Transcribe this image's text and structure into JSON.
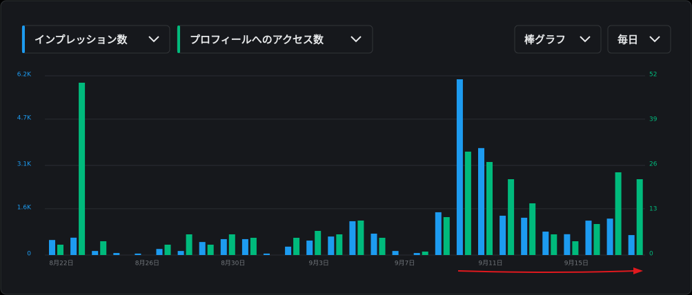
{
  "chart_data": {
    "type": "bar",
    "chart_style": "棒グラフ",
    "period": "毎日",
    "categories": [
      "8月22日",
      null,
      null,
      null,
      "8月26日",
      null,
      null,
      null,
      "8月30日",
      null,
      null,
      null,
      "9月3日",
      null,
      null,
      null,
      "9月7日",
      null,
      null,
      null,
      "9月11日",
      null,
      null,
      null,
      "9月15日",
      null,
      null,
      null
    ],
    "series": [
      {
        "name": "インプレッション数",
        "color": "#1d9bf0",
        "axis": "y",
        "values": [
          520,
          600,
          140,
          70,
          50,
          210,
          140,
          450,
          550,
          550,
          50,
          290,
          500,
          640,
          1170,
          740,
          140,
          70,
          1480,
          6080,
          3700,
          1360,
          1290,
          810,
          720,
          1190,
          1260,
          690
        ]
      },
      {
        "name": "プロフィールへのアクセス数",
        "color": "#00ba7c",
        "axis": "y2",
        "values": [
          3,
          50,
          4,
          0,
          0,
          3,
          6,
          3,
          6,
          5,
          0,
          5,
          7,
          6,
          10,
          5,
          0,
          1,
          11,
          30,
          27,
          22,
          15,
          6,
          4,
          9,
          24,
          22
        ]
      }
    ],
    "ylim": [
      0,
      6200
    ],
    "yticks": [
      0,
      {
        "value": 1600,
        "label": "1.6K"
      },
      {
        "value": 3100,
        "label": "3.1K"
      },
      {
        "value": 4700,
        "label": "4.7K"
      },
      {
        "value": 6200,
        "label": "6.2K"
      }
    ],
    "y2lim": [
      0,
      52
    ],
    "y2ticks": [
      0,
      13,
      26,
      39,
      52
    ],
    "grid": true
  }
}
